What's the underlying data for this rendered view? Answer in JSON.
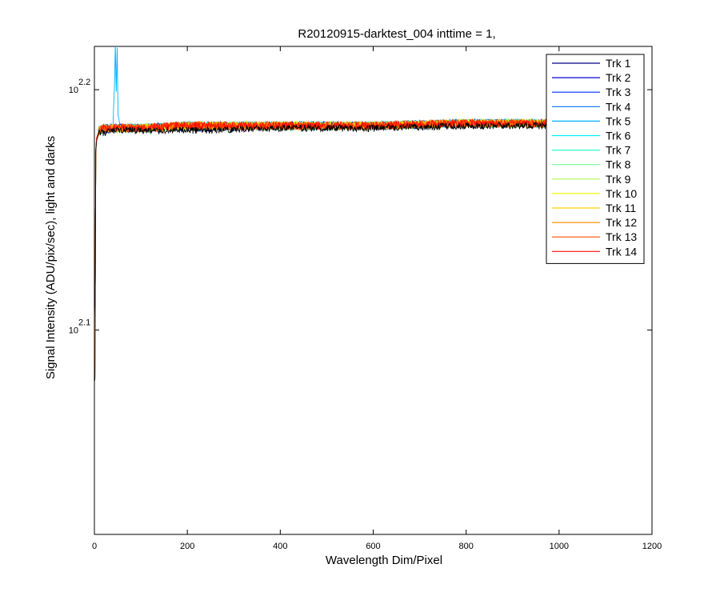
{
  "chart_data": {
    "type": "line",
    "title": "R20120915-darktest_004 inttime = 1,",
    "xlabel": "Wavelength Dim/Pixel",
    "ylabel": "Signal Intensity (ADU/pix/sec), light and darks",
    "xlim": [
      0,
      1200
    ],
    "xticks": [
      0,
      200,
      400,
      600,
      800,
      1000,
      1200
    ],
    "ylim_log10": [
      2.015,
      2.218
    ],
    "yscale": "log",
    "yticks": [
      {
        "base": "10",
        "exp": "2.1",
        "log10": 2.1
      },
      {
        "base": "10",
        "exp": "2.2",
        "log10": 2.2
      }
    ],
    "grid": false,
    "legend_position": "top-right",
    "series": [
      {
        "name": "Trk 1",
        "color": "#00008f",
        "x": [
          1,
          3,
          5,
          10,
          20,
          50,
          100,
          200,
          400,
          600,
          800,
          1000,
          1024
        ],
        "log10_y": [
          2.08,
          2.175,
          2.18,
          2.183,
          2.183,
          2.184,
          2.184,
          2.184,
          2.185,
          2.185,
          2.186,
          2.186,
          2.186
        ]
      },
      {
        "name": "Trk 2",
        "color": "#0000df",
        "x": [
          1,
          3,
          5,
          10,
          20,
          50,
          100,
          200,
          400,
          600,
          800,
          1000,
          1024
        ],
        "log10_y": [
          2.08,
          2.175,
          2.18,
          2.183,
          2.184,
          2.184,
          2.184,
          2.185,
          2.185,
          2.185,
          2.186,
          2.186,
          2.186
        ]
      },
      {
        "name": "Trk 3",
        "color": "#0030ff",
        "x": [
          1,
          3,
          5,
          10,
          20,
          50,
          100,
          200,
          400,
          600,
          800,
          1000,
          1024
        ],
        "log10_y": [
          2.08,
          2.175,
          2.18,
          2.183,
          2.184,
          2.184,
          2.184,
          2.185,
          2.185,
          2.185,
          2.186,
          2.186,
          2.186
        ]
      },
      {
        "name": "Trk 4",
        "color": "#0070ff",
        "x": [
          1,
          3,
          5,
          10,
          20,
          50,
          100,
          200,
          400,
          600,
          800,
          1000,
          1024
        ],
        "log10_y": [
          2.08,
          2.175,
          2.18,
          2.183,
          2.184,
          2.184,
          2.184,
          2.185,
          2.185,
          2.185,
          2.186,
          2.186,
          2.186
        ]
      },
      {
        "name": "Trk 5",
        "color": "#00b0ff",
        "x": [
          1,
          3,
          5,
          10,
          20,
          40,
          43,
          45,
          47,
          49,
          51,
          55,
          100,
          200,
          400,
          600,
          800,
          1000,
          1024
        ],
        "log10_y": [
          2.08,
          2.175,
          2.18,
          2.183,
          2.184,
          2.184,
          2.2,
          2.218,
          2.2,
          2.218,
          2.19,
          2.184,
          2.184,
          2.185,
          2.185,
          2.185,
          2.186,
          2.186,
          2.186
        ]
      },
      {
        "name": "Trk 6",
        "color": "#00efff",
        "x": [
          1,
          3,
          5,
          10,
          20,
          50,
          100,
          200,
          400,
          600,
          800,
          1000,
          1024
        ],
        "log10_y": [
          2.08,
          2.175,
          2.18,
          2.183,
          2.184,
          2.184,
          2.184,
          2.185,
          2.185,
          2.185,
          2.186,
          2.186,
          2.186
        ]
      },
      {
        "name": "Trk 7",
        "color": "#30ffcf",
        "x": [
          1,
          3,
          5,
          10,
          20,
          50,
          100,
          200,
          400,
          600,
          800,
          1000,
          1024
        ],
        "log10_y": [
          2.08,
          2.175,
          2.18,
          2.183,
          2.184,
          2.184,
          2.184,
          2.185,
          2.185,
          2.185,
          2.186,
          2.186,
          2.186
        ]
      },
      {
        "name": "Trk 8",
        "color": "#70ff8f",
        "x": [
          1,
          3,
          5,
          10,
          20,
          50,
          100,
          200,
          400,
          600,
          800,
          1000,
          1024
        ],
        "log10_y": [
          2.08,
          2.175,
          2.18,
          2.183,
          2.184,
          2.184,
          2.184,
          2.185,
          2.185,
          2.185,
          2.186,
          2.186,
          2.186
        ]
      },
      {
        "name": "Trk 9",
        "color": "#b0ff4f",
        "x": [
          1,
          3,
          5,
          10,
          20,
          50,
          100,
          200,
          400,
          600,
          800,
          1000,
          1024
        ],
        "log10_y": [
          2.08,
          2.175,
          2.18,
          2.183,
          2.184,
          2.184,
          2.184,
          2.185,
          2.185,
          2.185,
          2.186,
          2.186,
          2.186
        ]
      },
      {
        "name": "Trk 10",
        "color": "#efff10",
        "x": [
          1,
          3,
          5,
          10,
          20,
          50,
          100,
          200,
          400,
          600,
          800,
          1000,
          1024
        ],
        "log10_y": [
          2.08,
          2.175,
          2.18,
          2.183,
          2.184,
          2.184,
          2.184,
          2.185,
          2.185,
          2.185,
          2.186,
          2.186,
          2.186
        ]
      },
      {
        "name": "Trk 11",
        "color": "#ffcf00",
        "x": [
          1,
          3,
          5,
          10,
          20,
          50,
          100,
          200,
          400,
          600,
          800,
          1000,
          1024
        ],
        "log10_y": [
          2.08,
          2.175,
          2.18,
          2.183,
          2.184,
          2.184,
          2.184,
          2.185,
          2.185,
          2.185,
          2.186,
          2.186,
          2.186
        ]
      },
      {
        "name": "Trk 12",
        "color": "#ff8f00",
        "x": [
          1,
          3,
          5,
          10,
          20,
          50,
          100,
          200,
          400,
          600,
          800,
          1000,
          1024
        ],
        "log10_y": [
          2.08,
          2.175,
          2.18,
          2.183,
          2.184,
          2.184,
          2.184,
          2.185,
          2.185,
          2.185,
          2.186,
          2.186,
          2.186
        ]
      },
      {
        "name": "Trk 13",
        "color": "#ff5000",
        "x": [
          1,
          3,
          5,
          10,
          20,
          50,
          100,
          200,
          400,
          600,
          800,
          1000,
          1024
        ],
        "log10_y": [
          2.08,
          2.175,
          2.18,
          2.183,
          2.184,
          2.184,
          2.184,
          2.185,
          2.185,
          2.185,
          2.186,
          2.186,
          2.186
        ]
      },
      {
        "name": "Trk 14",
        "color": "#ff1000",
        "x": [
          1,
          3,
          5,
          10,
          20,
          50,
          100,
          200,
          400,
          600,
          800,
          1000,
          1024
        ],
        "log10_y": [
          2.08,
          2.175,
          2.18,
          2.183,
          2.184,
          2.184,
          2.184,
          2.185,
          2.185,
          2.185,
          2.186,
          2.186,
          2.186
        ]
      }
    ]
  }
}
